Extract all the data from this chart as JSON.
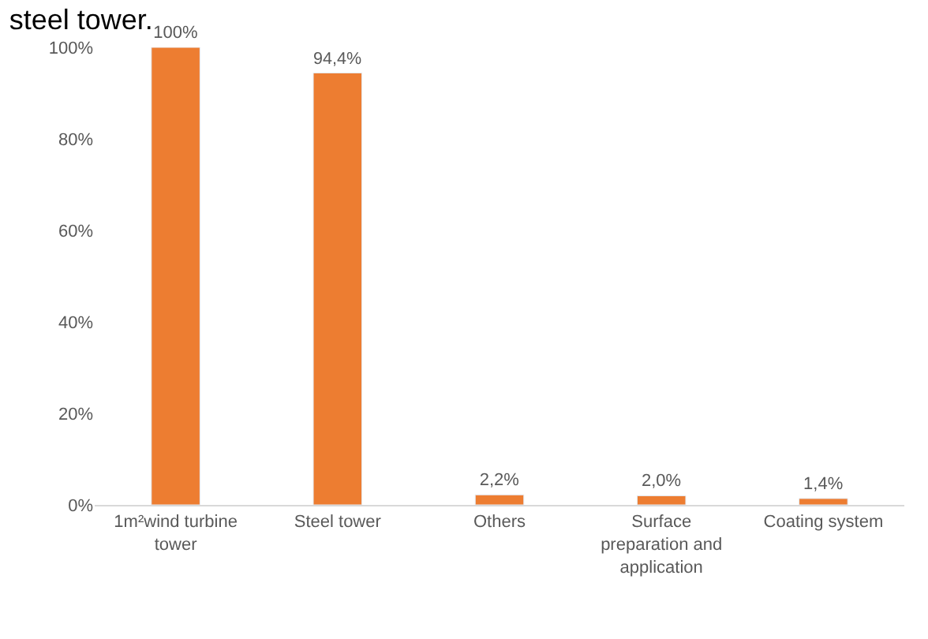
{
  "chart_data": {
    "type": "bar",
    "title": "steel tower.",
    "categories": [
      "1m²wind turbine tower",
      "Steel tower",
      "Others",
      "Surface preparation and application",
      "Coating system"
    ],
    "values": [
      100,
      94.4,
      2.2,
      2.0,
      1.4
    ],
    "value_labels": [
      "100%",
      "94,4%",
      "2,2%",
      "2,0%",
      "1,4%"
    ],
    "color": "#ed7d31",
    "ylim": [
      0,
      100
    ],
    "yticks": [
      {
        "value": 0,
        "label": "0%"
      },
      {
        "value": 20,
        "label": "20%"
      },
      {
        "value": 40,
        "label": "40%"
      },
      {
        "value": 60,
        "label": "60%"
      },
      {
        "value": 80,
        "label": "80%"
      },
      {
        "value": 100,
        "label": "100%"
      }
    ],
    "grid": false
  }
}
